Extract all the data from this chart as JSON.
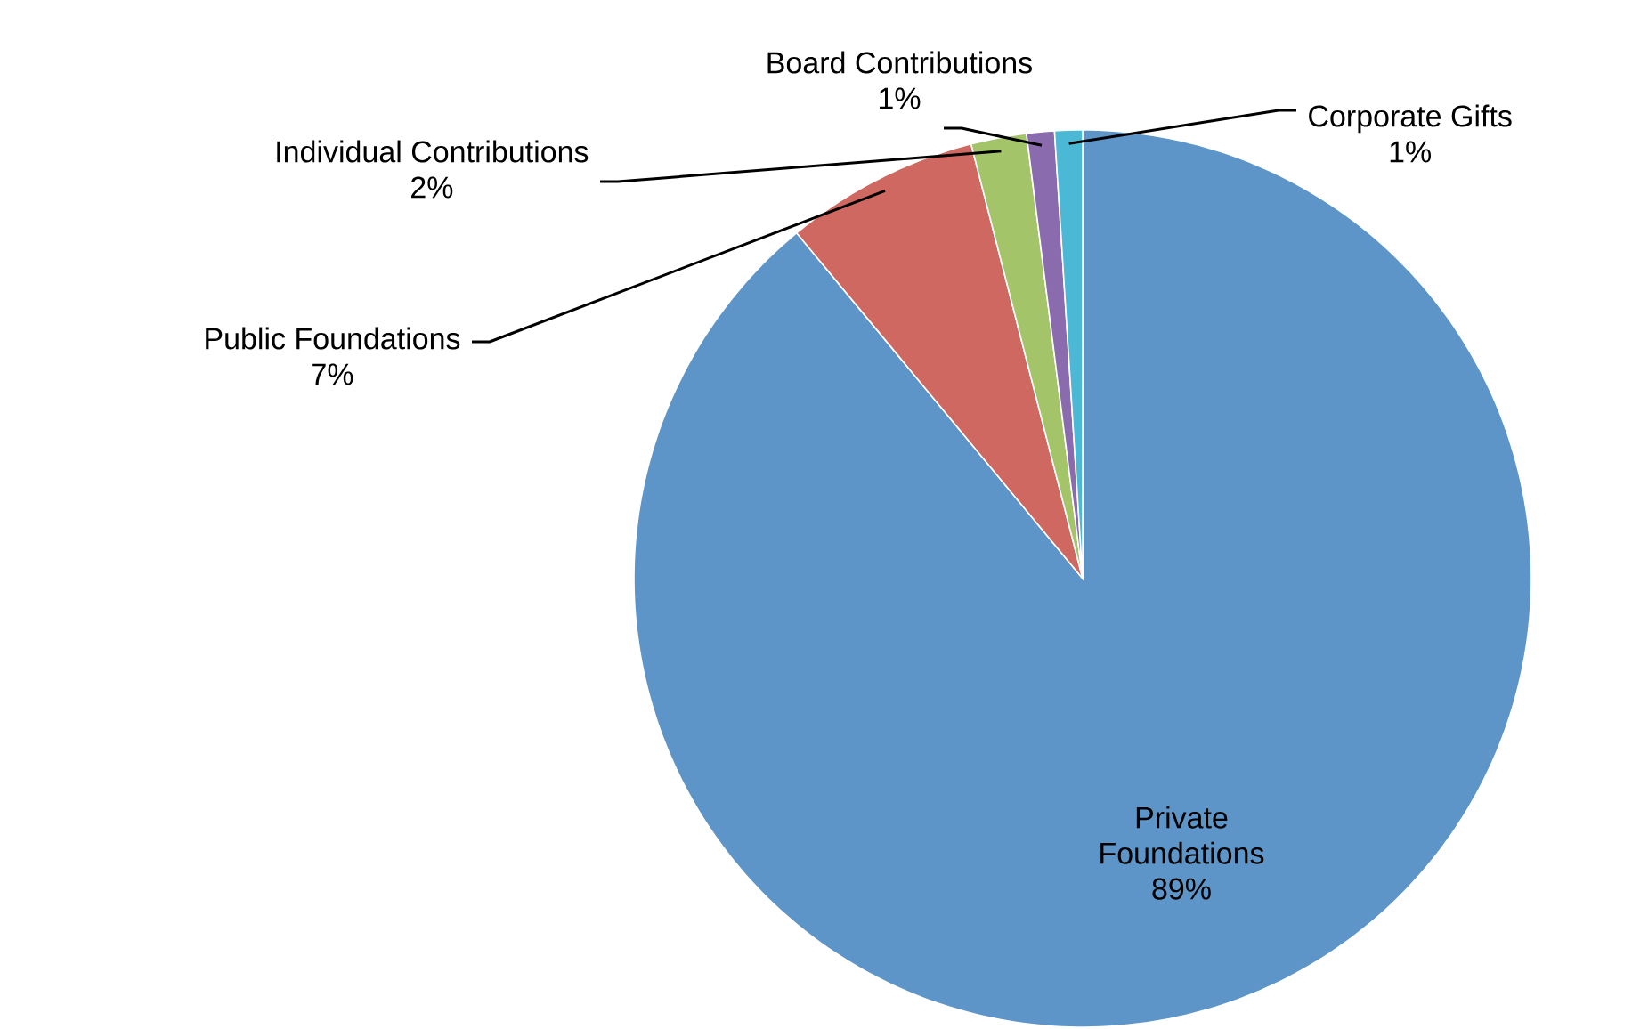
{
  "chart_data": {
    "type": "pie",
    "categories": [
      "Private Foundations",
      "Public Foundations",
      "Individual Contributions",
      "Board Contributions",
      "Corporate Gifts"
    ],
    "values": [
      89,
      7,
      2,
      1,
      1
    ],
    "value_labels": [
      "89%",
      "7%",
      "2%",
      "1%",
      "1%"
    ],
    "colors": [
      "#5e95c8",
      "#cf6860",
      "#a4c46a",
      "#8a6bae",
      "#4bb9d6"
    ]
  }
}
